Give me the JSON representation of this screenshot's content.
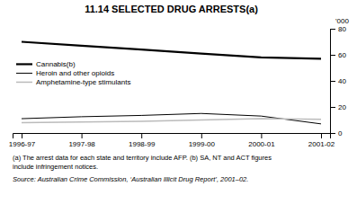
{
  "chart_data": {
    "type": "line",
    "title": "11.14   SELECTED DRUG ARRESTS(a)",
    "y_label": "'000",
    "categories": [
      "1996-97",
      "1997-98",
      "1998-99",
      "1999-00",
      "2000-01",
      "2001-02"
    ],
    "series": [
      {
        "name": "Cannabis(b)",
        "color": "#000000",
        "values": [
          70,
          67,
          64,
          61,
          58,
          57
        ]
      },
      {
        "name": "Heroin and other opioids",
        "color": "#000000",
        "values": [
          11,
          12.5,
          13.5,
          15,
          13,
          7
        ]
      },
      {
        "name": "Amphetamine-type stimulants",
        "color": "#bbbbbb",
        "values": [
          8,
          8.5,
          9,
          10,
          11,
          10.5
        ]
      }
    ],
    "ylim": [
      0,
      80
    ],
    "yticks": [
      0,
      20,
      40,
      60,
      80
    ],
    "grid": false,
    "legend": "left",
    "annotations": [
      "(a) The arrest data for each state and territory include AFP. (b) SA, NT and ACT figures",
      "include infringement notices.",
      "Source: Australian Crime Commission, ‘Australian Illicit Drug Report’, 2001–02."
    ]
  }
}
